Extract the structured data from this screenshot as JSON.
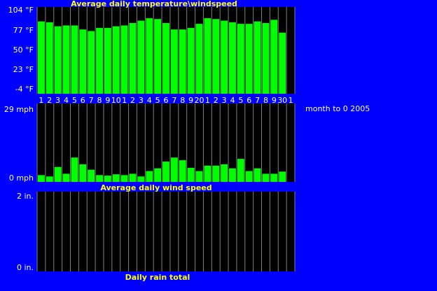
{
  "side_note": "month to 0 2005",
  "colors": {
    "background": "#0000ff",
    "plot": "#000000",
    "bar": "#00ff00",
    "grid": "#808080",
    "title": "#ffff00",
    "text": "#ffffff"
  },
  "day_labels": [
    "1",
    "2",
    "3",
    "4",
    "5",
    "6",
    "7",
    "8",
    "9",
    "10",
    "1",
    "2",
    "3",
    "4",
    "5",
    "6",
    "7",
    "8",
    "9",
    "20",
    "1",
    "2",
    "3",
    "4",
    "5",
    "6",
    "7",
    "8",
    "9",
    "30",
    "1"
  ],
  "chart_data": [
    {
      "type": "bar",
      "title": "Average daily temperature\\windspeed",
      "ylim": [
        -4,
        104
      ],
      "yticks": [
        "104 °F",
        "77 °F",
        "50 °F",
        "23 °F",
        "-4 °F"
      ],
      "grid": true,
      "values": [
        86,
        85,
        80,
        81,
        81,
        76,
        74,
        78,
        78,
        80,
        81,
        84,
        87,
        90,
        89,
        84,
        76,
        76,
        78,
        83,
        90,
        89,
        87,
        85,
        83,
        83,
        86,
        84,
        88,
        72,
        null
      ]
    },
    {
      "type": "bar",
      "title": "Average daily wind speed",
      "ylim": [
        0,
        29
      ],
      "yticks": [
        "29 mph",
        "0 mph"
      ],
      "grid": true,
      "values": [
        2.5,
        2.0,
        5.5,
        3.0,
        9.0,
        6.5,
        4.5,
        2.5,
        2.3,
        2.8,
        2.5,
        3.0,
        2.0,
        4.0,
        5.0,
        7.5,
        9.0,
        8.0,
        5.2,
        4.0,
        6.0,
        6.0,
        6.5,
        5.0,
        8.5,
        4.0,
        5.0,
        3.0,
        3.0,
        3.8,
        null
      ]
    },
    {
      "type": "bar",
      "title": "Daily rain total",
      "ylim": [
        0,
        2
      ],
      "yticks": [
        "2 in.",
        "0 in."
      ],
      "grid": true,
      "values": [
        0,
        0,
        0,
        0,
        0,
        0,
        0,
        0,
        0,
        0,
        0,
        0,
        0,
        0,
        0,
        0,
        0,
        0,
        0,
        0,
        0,
        0,
        0,
        0,
        0,
        0,
        0,
        0,
        0,
        0,
        0
      ]
    }
  ]
}
